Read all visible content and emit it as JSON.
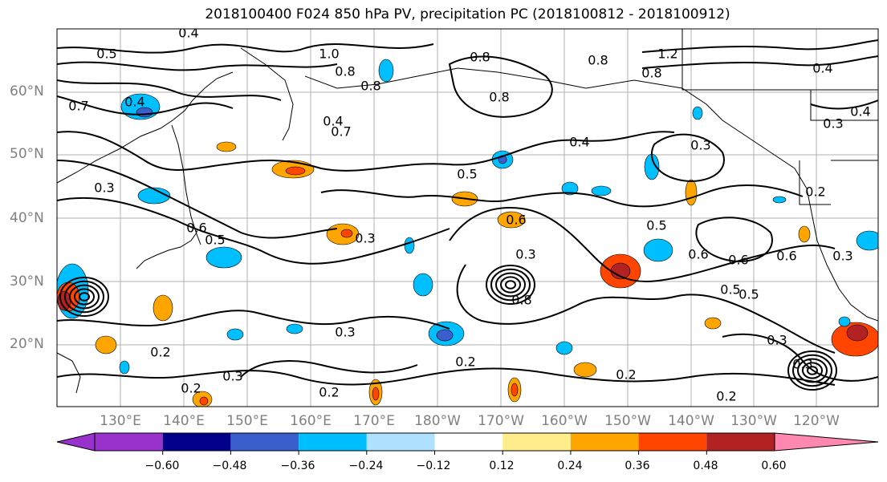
{
  "title": "2018100400 F024 850 hPa PV, precipitation PC (2018100812 - 2018100912)",
  "lat_labels": [
    "60°N",
    "50°N",
    "40°N",
    "30°N",
    "20°N"
  ],
  "lon_labels": [
    "130°E",
    "140°E",
    "150°E",
    "160°E",
    "170°E",
    "180°W",
    "170°W",
    "160°W",
    "150°W",
    "140°W",
    "130°W",
    "120°W"
  ],
  "colorbar": {
    "tick_labels": [
      "−0.60",
      "−0.48",
      "−0.36",
      "−0.24",
      "−0.12",
      "0.12",
      "0.24",
      "0.36",
      "0.48",
      "0.60"
    ],
    "colors": [
      "#9932cc",
      "#00008b",
      "#3a5fcd",
      "#00bfff",
      "#b0e2ff",
      "#ffffff",
      "#ffec8b",
      "#ffa500",
      "#ff4500",
      "#b22222",
      "#ff88b0"
    ]
  },
  "contour_labels": [
    "0.4",
    "0.5",
    "1.0",
    "0.8",
    "0.8",
    "0.8",
    "1.2",
    "0.8",
    "0.4",
    "0.7",
    "0.4",
    "0.8",
    "0.4",
    "0.3",
    "0.4",
    "0.7",
    "0.8",
    "0.4",
    "0.5",
    "0.3",
    "0.6",
    "0.2",
    "0.3",
    "0.6",
    "0.5",
    "0.5",
    "0.3",
    "0.6",
    "0.3",
    "0.3",
    "0.5",
    "0.6",
    "0.5",
    "0.6",
    "0.3",
    "0.2",
    "0.3",
    "0.2",
    "0.2",
    "0.2",
    "0.3",
    "0.2",
    "0.2",
    "0.8",
    "0.3"
  ]
}
